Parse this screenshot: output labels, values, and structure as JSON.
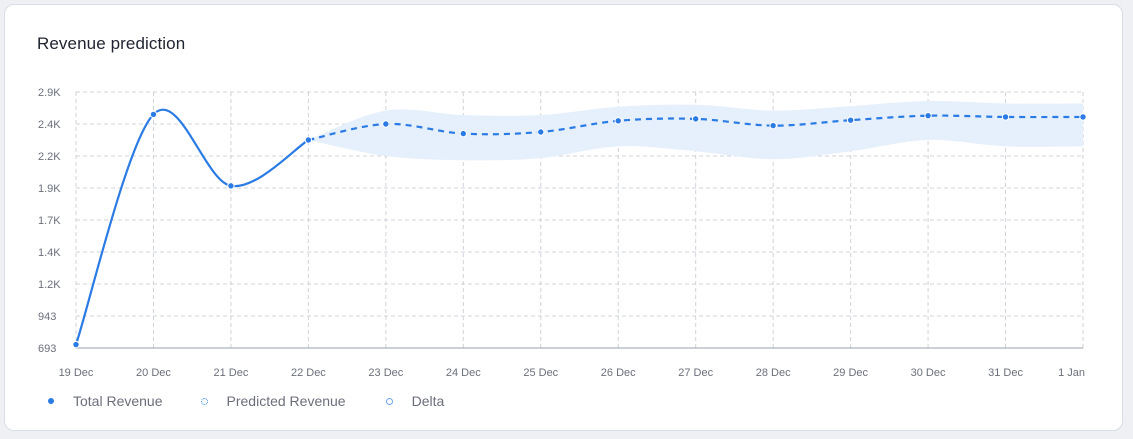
{
  "card": {
    "title": "Revenue prediction"
  },
  "colors": {
    "line": "#2b7be4",
    "band": "#e6f0fc",
    "grid": "#cfd3db",
    "axis": "#6b6f7b"
  },
  "legend": {
    "items": [
      {
        "label": "Total Revenue",
        "marker": "solid-dot"
      },
      {
        "label": "Predicted Revenue",
        "marker": "dotted-ring"
      },
      {
        "label": "Delta",
        "marker": "ring"
      }
    ]
  },
  "chart_data": {
    "type": "line",
    "categories": [
      "19 Dec",
      "20 Dec",
      "21 Dec",
      "22 Dec",
      "23 Dec",
      "24 Dec",
      "25 Dec",
      "26 Dec",
      "27 Dec",
      "28 Dec",
      "29 Dec",
      "30 Dec",
      "31 Dec",
      "1 Jan"
    ],
    "y_ticks": [
      693,
      943,
      1200,
      1400,
      1700,
      1900,
      2200,
      2400,
      2900
    ],
    "y_tick_labels": [
      "693",
      "943",
      "1.2K",
      "1.4K",
      "1.7K",
      "1.9K",
      "2.2K",
      "2.4K",
      "2.9K"
    ],
    "ylim": [
      693,
      2900
    ],
    "grid": true,
    "legend_position": "bottom-left",
    "series": [
      {
        "name": "Total Revenue",
        "style": "solid",
        "values": [
          720,
          2550,
          1920,
          2300,
          null,
          null,
          null,
          null,
          null,
          null,
          null,
          null,
          null,
          null
        ]
      },
      {
        "name": "Predicted Revenue",
        "style": "dashed",
        "values": [
          null,
          null,
          null,
          2300,
          2400,
          2340,
          2350,
          2450,
          2480,
          2390,
          2460,
          2530,
          2510,
          2510
        ]
      },
      {
        "name": "Delta",
        "style": "band",
        "lower": [
          null,
          null,
          null,
          2300,
          2200,
          2160,
          2180,
          2260,
          2230,
          2170,
          2230,
          2300,
          2260,
          2260
        ],
        "upper": [
          null,
          null,
          null,
          2300,
          2610,
          2540,
          2540,
          2670,
          2700,
          2610,
          2680,
          2760,
          2720,
          2720
        ]
      }
    ]
  }
}
